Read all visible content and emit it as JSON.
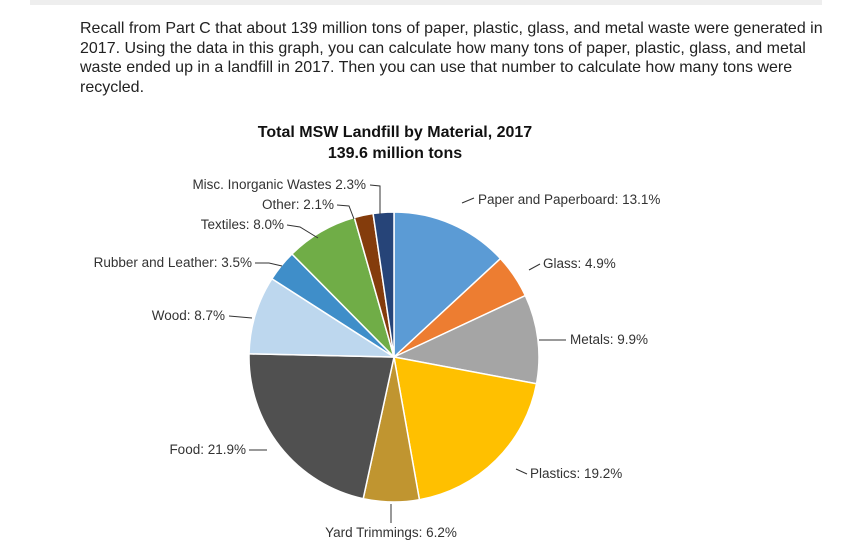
{
  "intro_text": "Recall from Part C that about 139 million tons of paper, plastic, glass, and metal waste were generated in 2017. Using the data in this graph, you can calculate how many tons of paper, plastic, glass, and metal waste ended up in a landfill in 2017. Then you can use that number to calculate how many tons were recycled.",
  "chart_data": {
    "type": "pie",
    "title": "Total MSW Landfill by Material, 2017",
    "subtitle": "139.6 million tons",
    "slices": [
      {
        "label": "Paper and Paperboard: 13.1%",
        "value": 13.1,
        "color": "#5b9bd5"
      },
      {
        "label": "Glass: 4.9%",
        "value": 4.9,
        "color": "#ed7d31"
      },
      {
        "label": "Metals: 9.9%",
        "value": 9.9,
        "color": "#a5a5a5"
      },
      {
        "label": "Plastics: 19.2%",
        "value": 19.2,
        "color": "#ffc000"
      },
      {
        "label": "Yard Trimmings: 6.2%",
        "value": 6.2,
        "color": "#c09530"
      },
      {
        "label": "Food: 21.9%",
        "value": 21.9,
        "color": "#505050"
      },
      {
        "label": "Wood: 8.7%",
        "value": 8.7,
        "color": "#bdd7ee"
      },
      {
        "label": "Rubber and Leather: 3.5%",
        "value": 3.5,
        "color": "#3f8ec9"
      },
      {
        "label": "Textiles: 8.0%",
        "value": 8.0,
        "color": "#70ad47"
      },
      {
        "label": "Other: 2.1%",
        "value": 2.1,
        "color": "#843c0c"
      },
      {
        "label": "Misc. Inorganic Wastes 2.3%",
        "value": 2.3,
        "color": "#264478"
      }
    ]
  }
}
